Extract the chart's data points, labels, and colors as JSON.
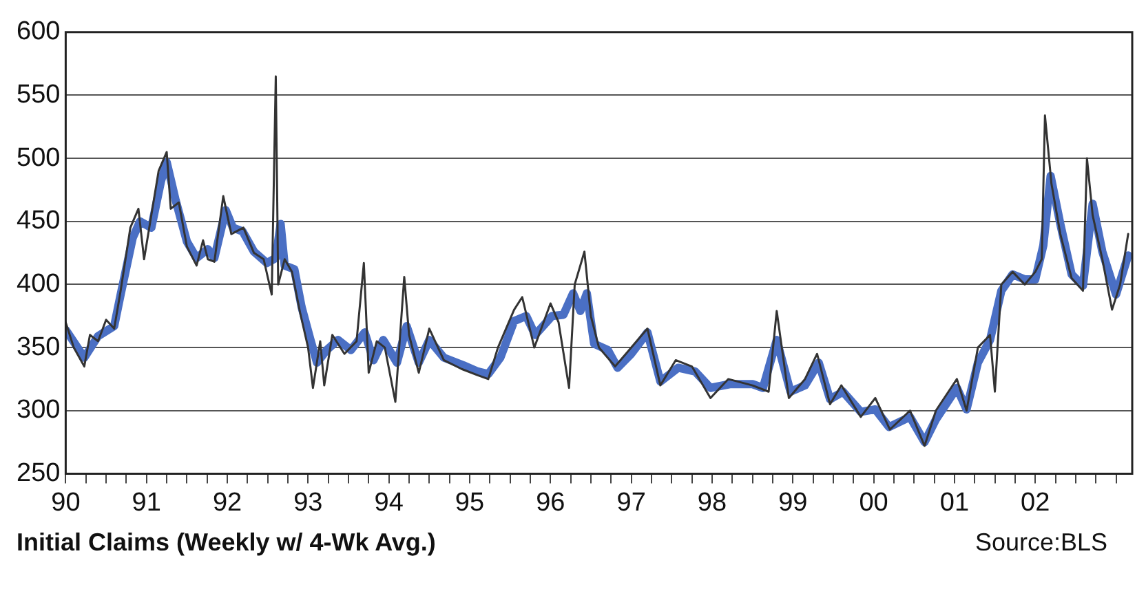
{
  "chart_data": {
    "type": "line",
    "title": "Initial Claims (Weekly w/ 4-Wk Avg.)",
    "annotations": [
      "Source:BLS"
    ],
    "xlim": [
      1990,
      2003.2
    ],
    "ylim": [
      250,
      600
    ],
    "yticks": [
      250,
      300,
      350,
      400,
      450,
      500,
      550,
      600
    ],
    "xticks": [
      {
        "value": 1990,
        "label": "90"
      },
      {
        "value": 1990.25,
        "label": null
      },
      {
        "value": 1990.5,
        "label": null
      },
      {
        "value": 1990.75,
        "label": null
      },
      {
        "value": 1991,
        "label": "91"
      },
      {
        "value": 1991.25,
        "label": null
      },
      {
        "value": 1991.5,
        "label": null
      },
      {
        "value": 1991.75,
        "label": null
      },
      {
        "value": 1992,
        "label": "92"
      },
      {
        "value": 1992.25,
        "label": null
      },
      {
        "value": 1992.5,
        "label": null
      },
      {
        "value": 1992.75,
        "label": null
      },
      {
        "value": 1993,
        "label": "93"
      },
      {
        "value": 1993.25,
        "label": null
      },
      {
        "value": 1993.5,
        "label": null
      },
      {
        "value": 1993.75,
        "label": null
      },
      {
        "value": 1994,
        "label": "94"
      },
      {
        "value": 1994.25,
        "label": null
      },
      {
        "value": 1994.5,
        "label": null
      },
      {
        "value": 1994.75,
        "label": null
      },
      {
        "value": 1995,
        "label": "95"
      },
      {
        "value": 1995.25,
        "label": null
      },
      {
        "value": 1995.5,
        "label": null
      },
      {
        "value": 1995.75,
        "label": null
      },
      {
        "value": 1996,
        "label": "96"
      },
      {
        "value": 1996.25,
        "label": null
      },
      {
        "value": 1996.5,
        "label": null
      },
      {
        "value": 1996.75,
        "label": null
      },
      {
        "value": 1997,
        "label": "97"
      },
      {
        "value": 1997.25,
        "label": null
      },
      {
        "value": 1997.5,
        "label": null
      },
      {
        "value": 1997.75,
        "label": null
      },
      {
        "value": 1998,
        "label": "98"
      },
      {
        "value": 1998.25,
        "label": null
      },
      {
        "value": 1998.5,
        "label": null
      },
      {
        "value": 1998.75,
        "label": null
      },
      {
        "value": 1999,
        "label": "99"
      },
      {
        "value": 1999.25,
        "label": null
      },
      {
        "value": 1999.5,
        "label": null
      },
      {
        "value": 1999.75,
        "label": null
      },
      {
        "value": 2000,
        "label": "00"
      },
      {
        "value": 2000.25,
        "label": null
      },
      {
        "value": 2000.5,
        "label": null
      },
      {
        "value": 2000.75,
        "label": null
      },
      {
        "value": 2001,
        "label": "01"
      },
      {
        "value": 2001.25,
        "label": null
      },
      {
        "value": 2001.5,
        "label": null
      },
      {
        "value": 2001.75,
        "label": null
      },
      {
        "value": 2002,
        "label": "02"
      },
      {
        "value": 2002.25,
        "label": null
      },
      {
        "value": 2002.5,
        "label": null
      },
      {
        "value": 2002.75,
        "label": null
      },
      {
        "value": 2003,
        "label": null
      }
    ],
    "grid": "y",
    "legend": false,
    "marker": "none",
    "line_style": "solid",
    "series": [
      {
        "color": "#333333",
        "x": [
          1990.0,
          1990.1,
          1990.23,
          1990.3,
          1990.4,
          1990.5,
          1990.6,
          1990.68,
          1990.8,
          1990.9,
          1990.97,
          1991.06,
          1991.15,
          1991.25,
          1991.3,
          1991.4,
          1991.5,
          1991.62,
          1991.7,
          1991.76,
          1991.84,
          1991.95,
          1992.05,
          1992.2,
          1992.33,
          1992.45,
          1992.55,
          1992.6,
          1992.63,
          1992.71,
          1992.8,
          1992.9,
          1993.0,
          1993.06,
          1993.15,
          1993.2,
          1993.3,
          1993.45,
          1993.6,
          1993.69,
          1993.75,
          1993.85,
          1993.95,
          1994.08,
          1994.19,
          1994.25,
          1994.37,
          1994.5,
          1994.68,
          1994.9,
          1995.1,
          1995.23,
          1995.35,
          1995.55,
          1995.65,
          1995.8,
          1996.0,
          1996.1,
          1996.23,
          1996.3,
          1996.42,
          1996.5,
          1996.6,
          1996.8,
          1997.0,
          1997.2,
          1997.36,
          1997.55,
          1997.75,
          1997.98,
          1998.2,
          1998.5,
          1998.7,
          1998.8,
          1998.95,
          1999.15,
          1999.3,
          1999.46,
          1999.6,
          1999.84,
          2000.02,
          2000.2,
          2000.45,
          2000.63,
          2000.77,
          2001.03,
          2001.15,
          2001.29,
          2001.44,
          2001.5,
          2001.58,
          2001.72,
          2001.87,
          2002.0,
          2002.08,
          2002.12,
          2002.2,
          2002.31,
          2002.45,
          2002.59,
          2002.64,
          2002.71,
          2002.83,
          2002.95,
          2003.05,
          2003.15
        ],
        "values": [
          370,
          350,
          335,
          360,
          355,
          372,
          365,
          395,
          445,
          460,
          420,
          455,
          490,
          505,
          460,
          465,
          430,
          415,
          435,
          420,
          418,
          470,
          440,
          445,
          425,
          420,
          392,
          565,
          400,
          420,
          410,
          378,
          350,
          318,
          355,
          320,
          360,
          345,
          355,
          417,
          330,
          355,
          350,
          307,
          406,
          360,
          330,
          365,
          340,
          333,
          328,
          325,
          350,
          380,
          390,
          350,
          385,
          370,
          318,
          400,
          426,
          375,
          350,
          335,
          350,
          365,
          320,
          340,
          335,
          310,
          325,
          320,
          315,
          379,
          310,
          325,
          345,
          305,
          320,
          295,
          310,
          285,
          300,
          272,
          300,
          325,
          300,
          350,
          360,
          315,
          400,
          410,
          400,
          410,
          420,
          534,
          480,
          440,
          405,
          395,
          500,
          455,
          420,
          380,
          400,
          440
        ]
      },
      {
        "color": "#4a6fc4",
        "x": [
          1990.0,
          1990.23,
          1990.4,
          1990.6,
          1990.68,
          1990.83,
          1990.92,
          1991.06,
          1991.18,
          1991.25,
          1991.36,
          1991.5,
          1991.62,
          1991.76,
          1991.84,
          1991.98,
          1992.07,
          1992.19,
          1992.33,
          1992.49,
          1992.6,
          1992.66,
          1992.71,
          1992.83,
          1992.92,
          1993.03,
          1993.11,
          1993.23,
          1993.37,
          1993.53,
          1993.7,
          1993.81,
          1993.93,
          1994.1,
          1994.22,
          1994.37,
          1994.5,
          1994.68,
          1994.92,
          1995.1,
          1995.23,
          1995.38,
          1995.55,
          1995.7,
          1995.81,
          1996.02,
          1996.16,
          1996.28,
          1996.37,
          1996.45,
          1996.54,
          1996.71,
          1996.83,
          1997.0,
          1997.2,
          1997.36,
          1997.58,
          1997.79,
          1997.98,
          1998.22,
          1998.5,
          1998.63,
          1998.8,
          1998.97,
          1999.15,
          1999.32,
          1999.46,
          1999.62,
          1999.84,
          2000.02,
          2000.19,
          2000.45,
          2000.63,
          2000.77,
          2001.03,
          2001.15,
          2001.29,
          2001.44,
          2001.58,
          2001.72,
          2001.87,
          2002.0,
          2002.1,
          2002.19,
          2002.31,
          2002.45,
          2002.59,
          2002.71,
          2002.83,
          2003.0,
          2003.15
        ],
        "values": [
          364,
          342,
          359,
          367,
          392,
          437,
          450,
          445,
          482,
          497,
          467,
          434,
          421,
          428,
          421,
          459,
          445,
          442,
          426,
          417,
          421,
          448,
          415,
          412,
          382,
          356,
          338,
          348,
          356,
          348,
          362,
          340,
          356,
          338,
          367,
          338,
          356,
          342,
          336,
          331,
          329,
          342,
          371,
          375,
          360,
          375,
          376,
          393,
          379,
          393,
          353,
          348,
          334,
          345,
          362,
          323,
          334,
          331,
          318,
          321,
          321,
          318,
          356,
          315,
          320,
          338,
          309,
          315,
          299,
          301,
          287,
          295,
          275,
          293,
          318,
          301,
          338,
          356,
          395,
          408,
          404,
          404,
          431,
          486,
          448,
          408,
          399,
          464,
          426,
          392,
          423
        ]
      }
    ]
  }
}
